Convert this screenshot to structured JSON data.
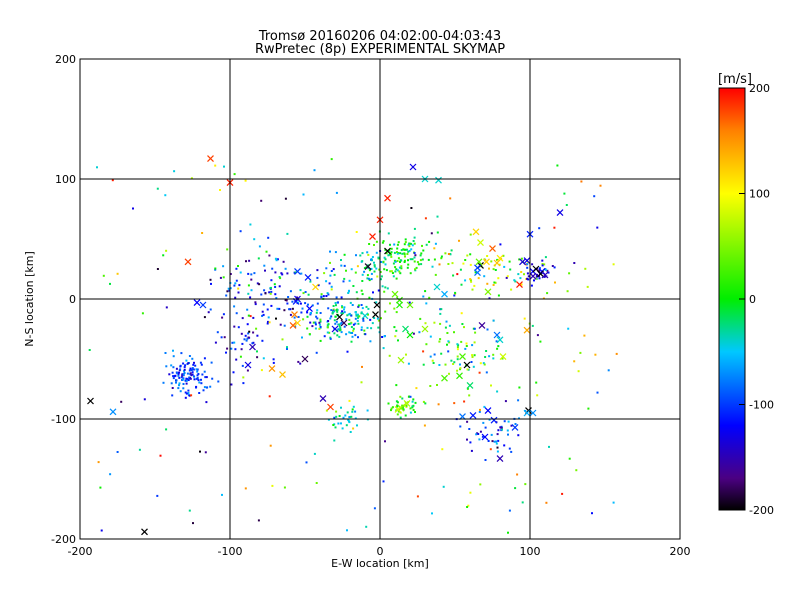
{
  "chart_data": {
    "type": "scatter",
    "title": "Tromsø 20160206 04:02:00-04:03:43",
    "subtitle": "RwPretec (8p) EXPERIMENTAL SKYMAP",
    "xlabel": "E-W location [km]",
    "ylabel": "N-S location [km]",
    "xlim": [
      -200,
      200
    ],
    "ylim": [
      -200,
      200
    ],
    "xticks": [
      -200,
      -100,
      0,
      100,
      200
    ],
    "yticks": [
      -200,
      -100,
      0,
      100,
      200
    ],
    "grid_lines": {
      "x": [
        -100,
        0,
        100
      ],
      "y": [
        -100,
        0,
        100
      ]
    },
    "colorbar": {
      "label": "[m/s]",
      "range": [
        -200,
        200
      ],
      "ticks": [
        200,
        100,
        0,
        -100,
        -200
      ],
      "colormap": "black-purple-blue-cyan-green-yellow-red",
      "stops": [
        {
          "value": -200,
          "color": "#000000"
        },
        {
          "value": -170,
          "color": "#4b0082"
        },
        {
          "value": -120,
          "color": "#0000ff"
        },
        {
          "value": -50,
          "color": "#00c8ff"
        },
        {
          "value": 0,
          "color": "#00ee00"
        },
        {
          "value": 100,
          "color": "#ffff00"
        },
        {
          "value": 160,
          "color": "#ff8000"
        },
        {
          "value": 200,
          "color": "#ff0000"
        }
      ]
    },
    "clusters": [
      {
        "center": [
          -128,
          -65
        ],
        "spread": [
          7,
          9
        ],
        "n": 120,
        "v": -100,
        "dv": 25
      },
      {
        "center": [
          -25,
          -18
        ],
        "spread": [
          12,
          11
        ],
        "n": 150,
        "v": -40,
        "dv": 40
      },
      {
        "center": [
          15,
          38
        ],
        "spread": [
          12,
          8
        ],
        "n": 120,
        "v": 0,
        "dv": 30
      },
      {
        "center": [
          -8,
          22
        ],
        "spread": [
          14,
          10
        ],
        "n": 60,
        "v": -20,
        "dv": 40
      },
      {
        "center": [
          -55,
          0
        ],
        "spread": [
          20,
          20
        ],
        "n": 90,
        "v": -90,
        "dv": 40
      },
      {
        "center": [
          -90,
          -15
        ],
        "spread": [
          15,
          22
        ],
        "n": 70,
        "v": -110,
        "dv": 40
      },
      {
        "center": [
          15,
          -90
        ],
        "spread": [
          6,
          4
        ],
        "n": 40,
        "v": 20,
        "dv": 30
      },
      {
        "center": [
          75,
          -110
        ],
        "spread": [
          10,
          12
        ],
        "n": 50,
        "v": -110,
        "dv": 40
      },
      {
        "center": [
          80,
          25
        ],
        "spread": [
          20,
          10
        ],
        "n": 70,
        "v": 60,
        "dv": 60
      },
      {
        "center": [
          55,
          -50
        ],
        "spread": [
          15,
          15
        ],
        "n": 60,
        "v": 10,
        "dv": 50
      },
      {
        "center": [
          -22,
          -100
        ],
        "spread": [
          6,
          5
        ],
        "n": 30,
        "v": -40,
        "dv": 20
      },
      {
        "center": [
          105,
          22
        ],
        "spread": [
          5,
          5
        ],
        "n": 25,
        "v": -130,
        "dv": 20
      },
      {
        "center": [
          -85,
          20
        ],
        "spread": [
          15,
          15
        ],
        "n": 40,
        "v": -80,
        "dv": 60
      },
      {
        "center": [
          30,
          -20
        ],
        "spread": [
          25,
          25
        ],
        "n": 50,
        "v": 0,
        "dv": 60
      }
    ],
    "scatter_background": {
      "n": 180,
      "xlim": [
        -195,
        160
      ],
      "ylim": [
        -195,
        120
      ],
      "v_range": [
        -200,
        200
      ]
    },
    "crosses": [
      [
        -113,
        117,
        180
      ],
      [
        -100,
        97,
        190
      ],
      [
        -128,
        31,
        180
      ],
      [
        -157,
        -194,
        -200
      ],
      [
        -193,
        -85,
        -200
      ],
      [
        -178,
        -94,
        -70
      ],
      [
        -122,
        -3,
        -120
      ],
      [
        -118,
        -5,
        -100
      ],
      [
        -58,
        -22,
        170
      ],
      [
        -57,
        -13,
        160
      ],
      [
        -72,
        -58,
        150
      ],
      [
        -65,
        -63,
        130
      ],
      [
        -50,
        -50,
        -180
      ],
      [
        -38,
        -83,
        -150
      ],
      [
        -33,
        -90,
        180
      ],
      [
        -88,
        -55,
        -130
      ],
      [
        -56,
        -2,
        -110
      ],
      [
        -47,
        -8,
        -120
      ],
      [
        -55,
        0,
        -130
      ],
      [
        -85,
        -40,
        -150
      ],
      [
        -55,
        23,
        -100
      ],
      [
        -48,
        18,
        -110
      ],
      [
        -27,
        -15,
        -200
      ],
      [
        -24,
        -20,
        -180
      ],
      [
        -30,
        -25,
        -130
      ],
      [
        -43,
        10,
        120
      ],
      [
        -10,
        -14,
        -40
      ],
      [
        -5,
        52,
        190
      ],
      [
        0,
        66,
        190
      ],
      [
        5,
        84,
        190
      ],
      [
        22,
        110,
        -130
      ],
      [
        5,
        40,
        -200
      ],
      [
        -8,
        27,
        -190
      ],
      [
        -2,
        -5,
        -200
      ],
      [
        -3,
        -13,
        -200
      ],
      [
        17,
        -25,
        -20
      ],
      [
        20,
        -30,
        0
      ],
      [
        13,
        -5,
        10
      ],
      [
        20,
        -5,
        40
      ],
      [
        13,
        -1,
        20
      ],
      [
        10,
        4,
        40
      ],
      [
        14,
        -51,
        60
      ],
      [
        14,
        -91,
        50
      ],
      [
        18,
        -87,
        70
      ],
      [
        12,
        -92,
        80
      ],
      [
        30,
        100,
        -40
      ],
      [
        39,
        99,
        -40
      ],
      [
        38,
        10,
        -40
      ],
      [
        43,
        4,
        -60
      ],
      [
        30,
        -25,
        60
      ],
      [
        43,
        -66,
        30
      ],
      [
        53,
        -64,
        20
      ],
      [
        58,
        -55,
        -200
      ],
      [
        55,
        -48,
        30
      ],
      [
        67,
        28,
        -200
      ],
      [
        71,
        31,
        120
      ],
      [
        78,
        30,
        130
      ],
      [
        80,
        34,
        110
      ],
      [
        67,
        47,
        80
      ],
      [
        64,
        56,
        120
      ],
      [
        66,
        31,
        40
      ],
      [
        65,
        26,
        -100
      ],
      [
        65,
        22,
        -80
      ],
      [
        75,
        42,
        170
      ],
      [
        72,
        6,
        50
      ],
      [
        68,
        -22,
        -160
      ],
      [
        78,
        -30,
        -80
      ],
      [
        82,
        -48,
        80
      ],
      [
        80,
        -34,
        -40
      ],
      [
        95,
        31,
        -140
      ],
      [
        98,
        32,
        -130
      ],
      [
        100,
        54,
        -110
      ],
      [
        102,
        23,
        -120
      ],
      [
        102,
        19,
        -150
      ],
      [
        104,
        25,
        -200
      ],
      [
        108,
        23,
        -120
      ],
      [
        107,
        21,
        -200
      ],
      [
        110,
        20,
        -150
      ],
      [
        93,
        12,
        190
      ],
      [
        98,
        -26,
        140
      ],
      [
        99,
        -93,
        -200
      ],
      [
        98,
        -95,
        -60
      ],
      [
        102,
        -95,
        -70
      ],
      [
        72,
        -93,
        -120
      ],
      [
        76,
        -101,
        -110
      ],
      [
        80,
        -133,
        -150
      ],
      [
        70,
        -115,
        -120
      ],
      [
        90,
        -107,
        -100
      ],
      [
        55,
        -98,
        -80
      ],
      [
        62,
        -97,
        -110
      ],
      [
        120,
        72,
        -130
      ],
      [
        60,
        -72,
        -20
      ],
      [
        -55,
        -20,
        120
      ]
    ]
  }
}
